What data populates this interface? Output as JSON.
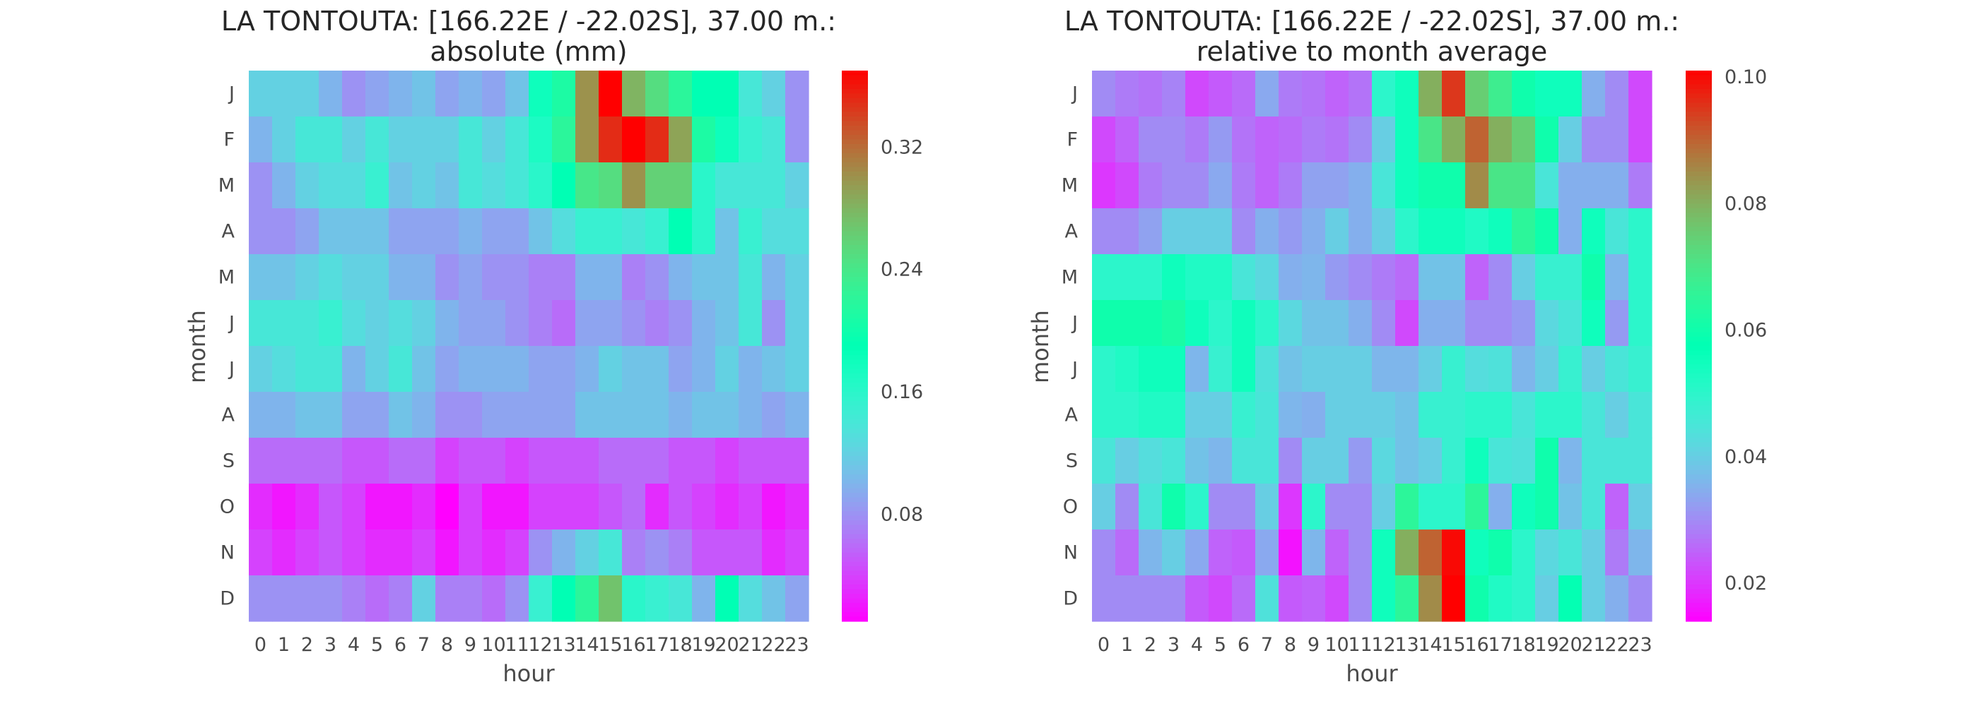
{
  "chart_data": [
    {
      "type": "heatmap",
      "title": [
        "LA TONTOUTA: [166.22E / -22.02S], 37.00 m.:",
        "absolute (mm)"
      ],
      "xlabel": "hour",
      "ylabel": "month",
      "x_categories": [
        "0",
        "1",
        "2",
        "3",
        "4",
        "5",
        "6",
        "7",
        "8",
        "9",
        "10",
        "11",
        "12",
        "13",
        "14",
        "15",
        "16",
        "17",
        "18",
        "19",
        "20",
        "21",
        "22",
        "23"
      ],
      "y_categories": [
        "J",
        "F",
        "M",
        "A",
        "M",
        "J",
        "J",
        "A",
        "S",
        "O",
        "N",
        "D"
      ],
      "colormap": "rainbow",
      "vmin": 0.01,
      "vmax": 0.37,
      "colorbar_ticks": [
        0.08,
        0.16,
        0.24,
        0.32
      ],
      "colorbar_labels": [
        "0.08",
        "0.16",
        "0.24",
        "0.32"
      ],
      "values": [
        [
          0.12,
          0.12,
          0.12,
          0.1,
          0.08,
          0.09,
          0.1,
          0.11,
          0.09,
          0.1,
          0.09,
          0.11,
          0.18,
          0.21,
          0.3,
          0.37,
          0.28,
          0.25,
          0.22,
          0.19,
          0.19,
          0.14,
          0.12,
          0.08
        ],
        [
          0.1,
          0.12,
          0.14,
          0.14,
          0.12,
          0.14,
          0.12,
          0.12,
          0.12,
          0.14,
          0.12,
          0.14,
          0.17,
          0.22,
          0.3,
          0.35,
          0.37,
          0.35,
          0.29,
          0.21,
          0.18,
          0.15,
          0.14,
          0.08
        ],
        [
          0.08,
          0.1,
          0.12,
          0.13,
          0.13,
          0.15,
          0.11,
          0.12,
          0.11,
          0.14,
          0.13,
          0.14,
          0.16,
          0.19,
          0.24,
          0.25,
          0.3,
          0.26,
          0.26,
          0.16,
          0.14,
          0.14,
          0.14,
          0.12
        ],
        [
          0.08,
          0.08,
          0.09,
          0.11,
          0.11,
          0.11,
          0.09,
          0.09,
          0.09,
          0.1,
          0.09,
          0.09,
          0.11,
          0.13,
          0.15,
          0.15,
          0.14,
          0.15,
          0.19,
          0.16,
          0.11,
          0.15,
          0.13,
          0.13
        ],
        [
          0.11,
          0.11,
          0.12,
          0.13,
          0.12,
          0.12,
          0.1,
          0.1,
          0.08,
          0.09,
          0.08,
          0.08,
          0.07,
          0.07,
          0.1,
          0.1,
          0.07,
          0.08,
          0.1,
          0.11,
          0.11,
          0.14,
          0.1,
          0.12
        ],
        [
          0.14,
          0.14,
          0.14,
          0.15,
          0.13,
          0.12,
          0.13,
          0.12,
          0.1,
          0.09,
          0.09,
          0.08,
          0.07,
          0.06,
          0.09,
          0.09,
          0.08,
          0.07,
          0.08,
          0.1,
          0.11,
          0.14,
          0.08,
          0.12
        ],
        [
          0.12,
          0.13,
          0.14,
          0.14,
          0.1,
          0.12,
          0.14,
          0.11,
          0.09,
          0.1,
          0.1,
          0.1,
          0.09,
          0.09,
          0.1,
          0.12,
          0.11,
          0.11,
          0.09,
          0.1,
          0.12,
          0.1,
          0.11,
          0.12
        ],
        [
          0.1,
          0.1,
          0.11,
          0.11,
          0.09,
          0.09,
          0.11,
          0.1,
          0.08,
          0.08,
          0.09,
          0.09,
          0.09,
          0.09,
          0.11,
          0.11,
          0.11,
          0.11,
          0.1,
          0.11,
          0.11,
          0.1,
          0.09,
          0.1
        ],
        [
          0.06,
          0.06,
          0.06,
          0.06,
          0.05,
          0.05,
          0.06,
          0.06,
          0.04,
          0.05,
          0.05,
          0.04,
          0.05,
          0.05,
          0.05,
          0.06,
          0.06,
          0.06,
          0.05,
          0.05,
          0.04,
          0.05,
          0.05,
          0.05
        ],
        [
          0.03,
          0.02,
          0.03,
          0.05,
          0.04,
          0.02,
          0.02,
          0.03,
          0.01,
          0.04,
          0.02,
          0.02,
          0.04,
          0.04,
          0.04,
          0.05,
          0.06,
          0.03,
          0.05,
          0.04,
          0.03,
          0.04,
          0.02,
          0.03
        ],
        [
          0.04,
          0.03,
          0.04,
          0.05,
          0.04,
          0.03,
          0.03,
          0.04,
          0.02,
          0.04,
          0.03,
          0.04,
          0.08,
          0.1,
          0.12,
          0.14,
          0.07,
          0.08,
          0.07,
          0.05,
          0.05,
          0.05,
          0.03,
          0.04
        ],
        [
          0.08,
          0.08,
          0.08,
          0.08,
          0.07,
          0.06,
          0.07,
          0.12,
          0.07,
          0.07,
          0.06,
          0.08,
          0.15,
          0.19,
          0.22,
          0.27,
          0.16,
          0.15,
          0.14,
          0.1,
          0.19,
          0.13,
          0.11,
          0.09
        ]
      ]
    },
    {
      "type": "heatmap",
      "title": [
        "LA TONTOUTA: [166.22E / -22.02S], 37.00 m.:",
        "relative to month average"
      ],
      "xlabel": "hour",
      "ylabel": "month",
      "x_categories": [
        "0",
        "1",
        "2",
        "3",
        "4",
        "5",
        "6",
        "7",
        "8",
        "9",
        "10",
        "11",
        "12",
        "13",
        "14",
        "15",
        "16",
        "17",
        "18",
        "19",
        "20",
        "21",
        "22",
        "23"
      ],
      "y_categories": [
        "J",
        "F",
        "M",
        "A",
        "M",
        "J",
        "J",
        "A",
        "S",
        "O",
        "N",
        "D"
      ],
      "colormap": "rainbow",
      "vmin": 0.014,
      "vmax": 0.101,
      "colorbar_ticks": [
        0.02,
        0.04,
        0.06,
        0.08,
        0.1
      ],
      "colorbar_labels": [
        "0.02",
        "0.04",
        "0.06",
        "0.08",
        "0.10"
      ],
      "values": [
        [
          0.03,
          0.028,
          0.027,
          0.029,
          0.022,
          0.024,
          0.026,
          0.034,
          0.028,
          0.027,
          0.025,
          0.027,
          0.05,
          0.055,
          0.08,
          0.095,
          0.075,
          0.068,
          0.06,
          0.055,
          0.055,
          0.035,
          0.03,
          0.022
        ],
        [
          0.022,
          0.025,
          0.03,
          0.03,
          0.028,
          0.032,
          0.027,
          0.025,
          0.026,
          0.028,
          0.027,
          0.03,
          0.04,
          0.055,
          0.07,
          0.08,
          0.09,
          0.08,
          0.075,
          0.06,
          0.04,
          0.03,
          0.03,
          0.022
        ],
        [
          0.02,
          0.022,
          0.028,
          0.03,
          0.03,
          0.034,
          0.028,
          0.025,
          0.028,
          0.033,
          0.033,
          0.035,
          0.045,
          0.055,
          0.06,
          0.06,
          0.085,
          0.07,
          0.07,
          0.045,
          0.035,
          0.035,
          0.035,
          0.028
        ],
        [
          0.03,
          0.03,
          0.033,
          0.04,
          0.04,
          0.04,
          0.03,
          0.035,
          0.032,
          0.035,
          0.04,
          0.035,
          0.04,
          0.05,
          0.055,
          0.055,
          0.052,
          0.055,
          0.065,
          0.06,
          0.035,
          0.055,
          0.045,
          0.05
        ],
        [
          0.05,
          0.05,
          0.05,
          0.055,
          0.052,
          0.052,
          0.045,
          0.042,
          0.035,
          0.036,
          0.032,
          0.03,
          0.028,
          0.026,
          0.038,
          0.038,
          0.025,
          0.03,
          0.04,
          0.048,
          0.048,
          0.06,
          0.036,
          0.05
        ],
        [
          0.06,
          0.06,
          0.06,
          0.062,
          0.055,
          0.05,
          0.055,
          0.05,
          0.042,
          0.038,
          0.038,
          0.035,
          0.03,
          0.022,
          0.035,
          0.035,
          0.03,
          0.03,
          0.032,
          0.042,
          0.045,
          0.055,
          0.032,
          0.05
        ],
        [
          0.05,
          0.052,
          0.055,
          0.055,
          0.036,
          0.048,
          0.055,
          0.044,
          0.038,
          0.04,
          0.04,
          0.04,
          0.036,
          0.036,
          0.04,
          0.048,
          0.043,
          0.044,
          0.036,
          0.04,
          0.048,
          0.04,
          0.045,
          0.048
        ],
        [
          0.05,
          0.05,
          0.052,
          0.052,
          0.04,
          0.04,
          0.048,
          0.045,
          0.036,
          0.035,
          0.04,
          0.04,
          0.04,
          0.038,
          0.048,
          0.048,
          0.05,
          0.05,
          0.045,
          0.05,
          0.05,
          0.045,
          0.04,
          0.045
        ],
        [
          0.045,
          0.04,
          0.043,
          0.045,
          0.038,
          0.036,
          0.045,
          0.045,
          0.03,
          0.04,
          0.04,
          0.032,
          0.042,
          0.038,
          0.04,
          0.048,
          0.055,
          0.045,
          0.044,
          0.06,
          0.036,
          0.045,
          0.045,
          0.045
        ],
        [
          0.04,
          0.03,
          0.045,
          0.06,
          0.05,
          0.03,
          0.03,
          0.04,
          0.02,
          0.05,
          0.03,
          0.03,
          0.04,
          0.065,
          0.05,
          0.05,
          0.065,
          0.035,
          0.055,
          0.06,
          0.038,
          0.045,
          0.025,
          0.04
        ],
        [
          0.03,
          0.026,
          0.036,
          0.04,
          0.034,
          0.025,
          0.024,
          0.034,
          0.016,
          0.036,
          0.025,
          0.03,
          0.055,
          0.08,
          0.09,
          0.1,
          0.055,
          0.06,
          0.05,
          0.042,
          0.045,
          0.04,
          0.028,
          0.036
        ],
        [
          0.03,
          0.03,
          0.03,
          0.03,
          0.024,
          0.022,
          0.026,
          0.044,
          0.024,
          0.025,
          0.022,
          0.03,
          0.055,
          0.065,
          0.085,
          0.101,
          0.06,
          0.052,
          0.05,
          0.04,
          0.058,
          0.04,
          0.035,
          0.03
        ]
      ]
    }
  ]
}
